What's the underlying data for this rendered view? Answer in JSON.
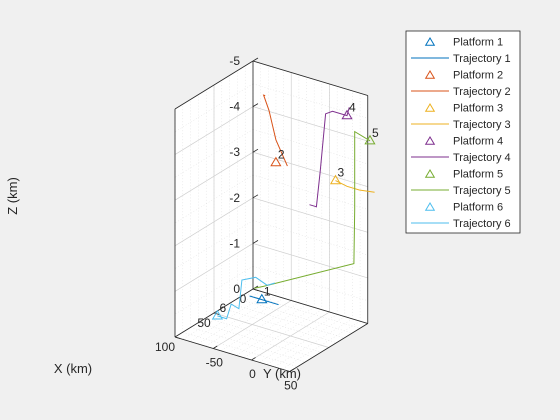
{
  "chart_data": {
    "type": "scatter3d",
    "xlabel": "X (km)",
    "ylabel": "Y (km)",
    "zlabel": "Z (km)",
    "xlim": [
      0,
      100
    ],
    "ylim": [
      -100,
      50
    ],
    "zlim": [
      -5,
      0
    ],
    "z_direction": "reversed",
    "grid": true,
    "minor_grid": true,
    "x_ticks": [
      0,
      50,
      100
    ],
    "y_ticks": [
      -50,
      0,
      50
    ],
    "z_ticks": [
      -5,
      -4,
      -3,
      -2,
      -1,
      0
    ],
    "x_tick_labels": [
      "0",
      "50",
      "100"
    ],
    "y_tick_labels": [
      "-50",
      "0",
      "50"
    ],
    "z_tick_labels": [
      "-5",
      "-4",
      "-3",
      "-2",
      "-1",
      "0"
    ],
    "legend_position": "right",
    "legend": [
      "Platform 1",
      "Trajectory 1",
      "Platform 2",
      "Trajectory 2",
      "Platform 3",
      "Trajectory 3",
      "Platform 4",
      "Trajectory 4",
      "Platform 5",
      "Trajectory 5",
      "Platform 6",
      "Trajectory 6"
    ],
    "platforms": [
      {
        "id": "1",
        "label": "1",
        "color": "#0072BD",
        "position": [
          75,
          -12,
          -1
        ],
        "trajectory": [
          [
            75,
            -28,
            -1
          ],
          [
            75,
            -12,
            -1
          ],
          [
            75,
            10,
            -1
          ]
        ]
      },
      {
        "id": "2",
        "label": "2",
        "color": "#D95319",
        "position": [
          5,
          -65,
          -3
        ],
        "trajectory": [
          [
            5,
            -79,
            -4.4
          ],
          [
            5,
            -81,
            -4.4
          ],
          [
            5,
            -74,
            -4.1
          ],
          [
            5,
            -65,
            -3.5
          ],
          [
            5,
            -50,
            -3
          ]
        ]
      },
      {
        "id": "3",
        "label": "3",
        "color": "#EDB120",
        "position": [
          5,
          13,
          -3
        ],
        "trajectory": [
          [
            5,
            13,
            -3
          ],
          [
            5,
            28,
            -2.95
          ],
          [
            5,
            44,
            -2.95
          ],
          [
            5,
            64,
            -3
          ]
        ]
      },
      {
        "id": "4",
        "label": "4",
        "color": "#7E2F8E",
        "position": [
          5,
          28,
          -4.5
        ],
        "trajectory": [
          [
            5,
            -21,
            -2.3
          ],
          [
            5,
            -14,
            -2.3
          ],
          [
            5,
            -12,
            -2.3
          ],
          [
            5,
            -7,
            -3.1
          ],
          [
            5,
            0,
            -4.4
          ],
          [
            5,
            9,
            -4.5
          ],
          [
            5,
            28,
            -4.5
          ],
          [
            5,
            31,
            -4.7
          ]
        ]
      },
      {
        "id": "5",
        "label": "5",
        "color": "#77AC30",
        "position": [
          5,
          58,
          -4.1
        ],
        "trajectory": [
          [
            75,
            -22,
            -1.2
          ],
          [
            75,
            -10,
            -1.3
          ],
          [
            5,
            37,
            -1.3
          ],
          [
            5,
            38,
            -2.5
          ],
          [
            5,
            38,
            -4.2
          ],
          [
            5,
            58,
            -4.1
          ]
        ]
      },
      {
        "id": "6",
        "label": "6",
        "color": "#4DBEEE",
        "position": [
          75,
          -70,
          -0.35
        ],
        "trajectory": [
          [
            75,
            -70,
            -0.35
          ],
          [
            75,
            -58,
            -0.35
          ],
          [
            75,
            -52,
            -0.7
          ],
          [
            75,
            -42,
            -0.65
          ],
          [
            75,
            -38,
            -1.3
          ],
          [
            75,
            -20,
            -1.45
          ],
          [
            75,
            -5,
            -1.35
          ],
          [
            75,
            5,
            -1.45
          ]
        ]
      }
    ]
  }
}
